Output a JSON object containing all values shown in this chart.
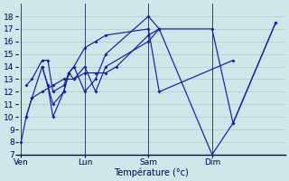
{
  "background_color": "#cce8e8",
  "grid_color": "#aacccc",
  "line_color": "#1a1aaa",
  "x_tick_labels": [
    "Ven",
    "Lun",
    "Sam",
    "Dim"
  ],
  "x_tick_positions": [
    0,
    1,
    2,
    3
  ],
  "xlabel": "Température (°c)",
  "ylim": [
    7,
    19
  ],
  "yticks": [
    7,
    8,
    9,
    10,
    11,
    12,
    13,
    14,
    15,
    16,
    17,
    18
  ],
  "series1_x": [
    0.0,
    0.08,
    0.17,
    0.33,
    0.5,
    0.67,
    0.83,
    1.0,
    1.17,
    1.33,
    1.5,
    2.0,
    2.17,
    3.0,
    3.33,
    4.0
  ],
  "series1_y": [
    8.0,
    10.0,
    11.5,
    12.0,
    12.5,
    13.0,
    13.0,
    13.5,
    13.5,
    13.5,
    14.0,
    16.5,
    17.0,
    17.0,
    9.5,
    17.5
  ],
  "series2_x": [
    0.08,
    0.17,
    0.33,
    0.42,
    0.5,
    0.67,
    0.75,
    0.83,
    1.0,
    1.17,
    1.33,
    2.0,
    2.17,
    3.0,
    3.33,
    4.0
  ],
  "series2_y": [
    10.0,
    11.5,
    14.0,
    12.5,
    11.0,
    12.0,
    13.5,
    13.0,
    14.0,
    12.0,
    14.0,
    16.0,
    17.0,
    7.0,
    9.5,
    17.5
  ],
  "series3_x": [
    0.08,
    0.17,
    0.33,
    0.42,
    0.5,
    0.67,
    0.75,
    0.83,
    1.0,
    1.17,
    1.33,
    2.0,
    2.17,
    3.33
  ],
  "series3_y": [
    12.5,
    13.0,
    14.5,
    14.5,
    12.0,
    12.5,
    13.5,
    14.0,
    15.5,
    16.0,
    16.5,
    17.0,
    12.0,
    14.5
  ],
  "series4_x": [
    0.33,
    0.42,
    0.5,
    0.67,
    0.75,
    0.83,
    1.0,
    1.17,
    1.33,
    2.0,
    2.17
  ],
  "series4_y": [
    14.0,
    12.5,
    10.0,
    12.0,
    13.5,
    14.0,
    12.0,
    13.0,
    15.0,
    18.0,
    17.0
  ]
}
